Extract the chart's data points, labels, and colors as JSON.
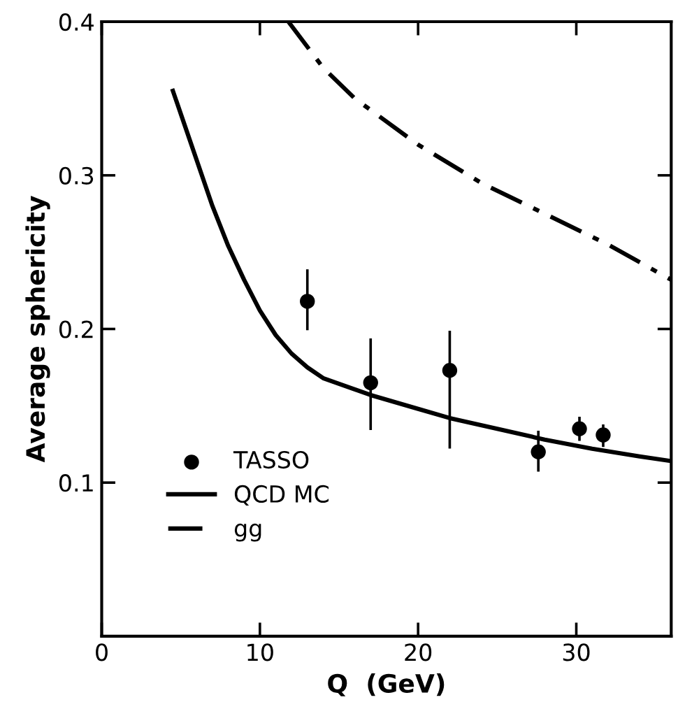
{
  "chart_data": {
    "type": "scatter",
    "xlabel": "Q  (GeV)",
    "ylabel": "Average sphericity",
    "xlim": [
      0,
      36
    ],
    "ylim": [
      0,
      0.4
    ],
    "xticks": [
      0,
      10,
      20,
      30
    ],
    "yticks": [
      0.1,
      0.2,
      0.3,
      0.4
    ],
    "grid": false,
    "legend": "bottom left",
    "series": [
      {
        "name": "TASSO",
        "marker": "circle",
        "color": "#000000",
        "x": [
          13,
          17,
          22,
          27.6,
          30.2,
          31.7
        ],
        "values": [
          0.218,
          0.165,
          0.173,
          0.12,
          0.135,
          0.131
        ],
        "errors": [
          [
            0.2,
            0.238
          ],
          [
            0.135,
            0.193
          ],
          [
            0.123,
            0.198
          ],
          [
            0.108,
            0.133
          ],
          [
            0.128,
            0.142
          ],
          [
            0.124,
            0.137
          ]
        ]
      },
      {
        "name": "QCD MC",
        "type": "line",
        "line_style": "solid",
        "color": "#000000",
        "x": [
          4.5,
          6,
          7,
          8,
          9,
          10,
          11,
          12,
          13,
          14,
          17,
          20,
          22,
          25,
          28,
          31,
          34,
          36
        ],
        "values": [
          0.355,
          0.31,
          0.28,
          0.254,
          0.232,
          0.212,
          0.196,
          0.184,
          0.175,
          0.168,
          0.157,
          0.148,
          0.142,
          0.135,
          0.128,
          0.122,
          0.117,
          0.114
        ]
      },
      {
        "name": "gg",
        "type": "line",
        "line_style": "dashdot",
        "color": "#000000",
        "x": [
          11.8,
          14,
          16,
          20,
          24,
          28,
          32,
          36
        ],
        "values": [
          0.4,
          0.37,
          0.35,
          0.32,
          0.295,
          0.275,
          0.255,
          0.232
        ]
      }
    ]
  }
}
